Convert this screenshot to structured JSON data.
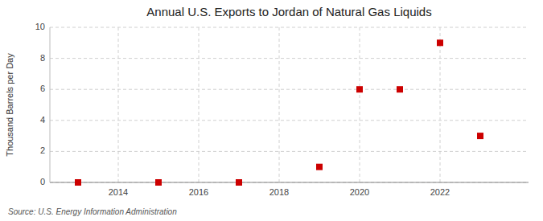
{
  "chart_data": {
    "type": "scatter",
    "title": "Annual U.S. Exports to Jordan of Natural Gas Liquids",
    "ylabel": "Thousand Barrels per Day",
    "source": "Source: U.S. Energy Information Administration",
    "x": [
      2013,
      2015,
      2017,
      2019,
      2020,
      2021,
      2022,
      2023
    ],
    "values": [
      0.0,
      0.0,
      0.0,
      1.0,
      6.0,
      6.0,
      9.0,
      3.0
    ],
    "color": "#cc0000",
    "marker": "square",
    "xlim": [
      2012.3,
      2024.2
    ],
    "ylim": [
      0,
      10
    ],
    "xticks": [
      2014,
      2016,
      2018,
      2020,
      2022
    ],
    "yticks": [
      0,
      2,
      4,
      6,
      8,
      10
    ],
    "grid": true
  }
}
